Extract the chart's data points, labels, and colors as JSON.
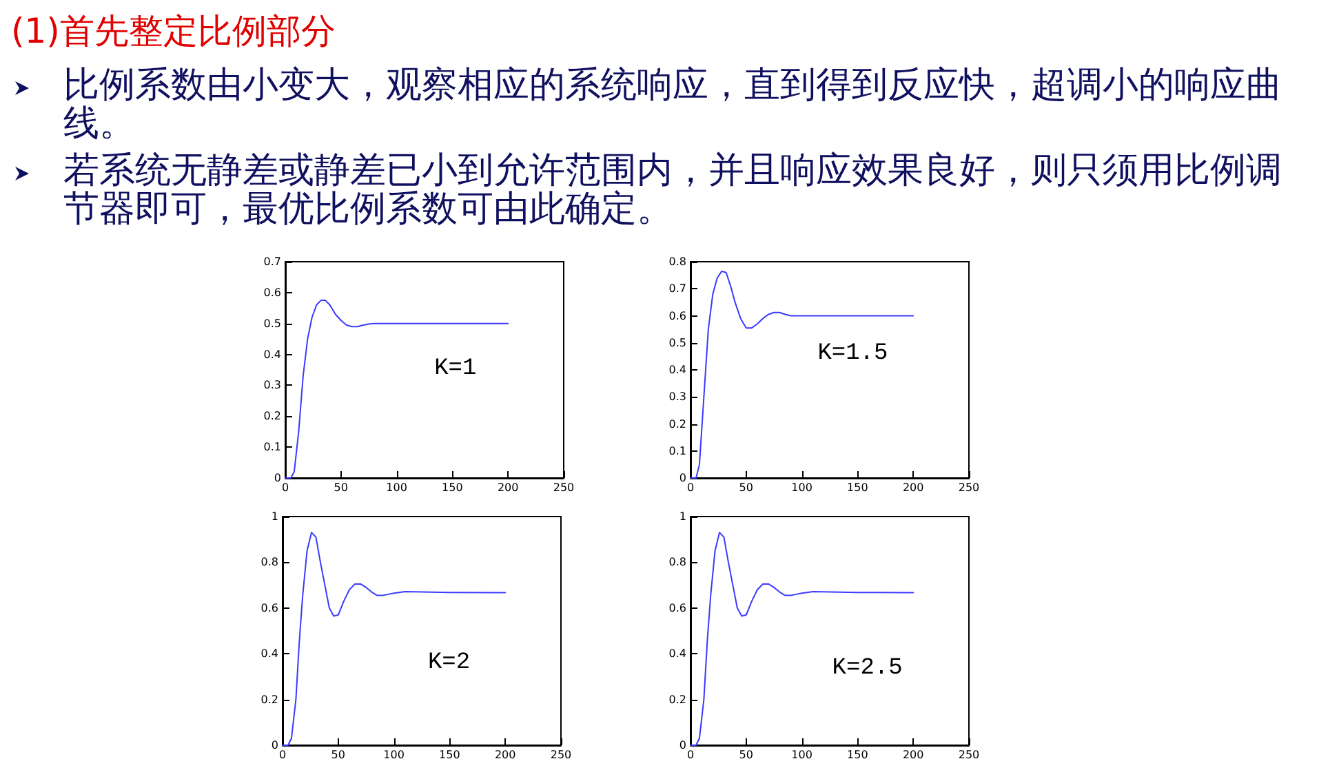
{
  "chart_data": [
    {
      "type": "other",
      "title": "(1)首先整定比例部分",
      "annotations": [
        "比例系数由小变大，观察相应的系统响应，直到得到反应快，超调小的响应曲线。",
        "若系统无静差或静差已小到允许范围内，并且响应效果良好，则只须用比例调节器即可，最优比例系数可由此确定。"
      ]
    },
    {
      "type": "line",
      "annotations": [
        "K=1"
      ],
      "xlim": [
        0,
        250
      ],
      "xticks": [
        0,
        50,
        100,
        150,
        200,
        250
      ],
      "ylim": [
        0,
        0.7
      ],
      "yticks": [
        0,
        0.1,
        0.2,
        0.3,
        0.4,
        0.5,
        0.6,
        0.7
      ],
      "grid": false,
      "marker": "none",
      "line_style": "solid",
      "series": [
        {
          "color": "#3a3aff",
          "x": [
            0,
            5,
            8,
            12,
            16,
            20,
            24,
            28,
            32,
            36,
            40,
            45,
            50,
            55,
            60,
            65,
            70,
            75,
            80,
            90,
            100,
            150,
            200
          ],
          "values": [
            0,
            0,
            0.02,
            0.15,
            0.33,
            0.45,
            0.52,
            0.56,
            0.575,
            0.575,
            0.56,
            0.53,
            0.51,
            0.495,
            0.49,
            0.49,
            0.495,
            0.498,
            0.5,
            0.5,
            0.5,
            0.5,
            0.5
          ]
        }
      ]
    },
    {
      "type": "line",
      "annotations": [
        "K=1.5"
      ],
      "xlim": [
        0,
        250
      ],
      "xticks": [
        0,
        50,
        100,
        150,
        200,
        250
      ],
      "ylim": [
        0,
        0.8
      ],
      "yticks": [
        0,
        0.1,
        0.2,
        0.3,
        0.4,
        0.5,
        0.6,
        0.7,
        0.8
      ],
      "grid": false,
      "marker": "none",
      "line_style": "solid",
      "series": [
        {
          "color": "#3a3aff",
          "x": [
            0,
            5,
            8,
            12,
            16,
            20,
            24,
            28,
            32,
            36,
            40,
            45,
            50,
            55,
            60,
            65,
            70,
            75,
            80,
            85,
            90,
            100,
            150,
            200
          ],
          "values": [
            0,
            0,
            0.05,
            0.3,
            0.55,
            0.68,
            0.74,
            0.765,
            0.76,
            0.71,
            0.65,
            0.59,
            0.555,
            0.555,
            0.57,
            0.59,
            0.605,
            0.612,
            0.612,
            0.605,
            0.6,
            0.6,
            0.6,
            0.6
          ]
        }
      ]
    },
    {
      "type": "line",
      "annotations": [
        "K=2"
      ],
      "xlim": [
        0,
        250
      ],
      "xticks": [
        0,
        50,
        100,
        150,
        200,
        250
      ],
      "ylim": [
        0,
        1
      ],
      "yticks": [
        0,
        0.2,
        0.4,
        0.6,
        0.8,
        1
      ],
      "grid": false,
      "marker": "none",
      "line_style": "solid",
      "series": [
        {
          "color": "#3a3aff",
          "x": [
            0,
            5,
            8,
            12,
            15,
            18,
            22,
            26,
            30,
            34,
            38,
            42,
            46,
            50,
            55,
            60,
            65,
            70,
            75,
            80,
            85,
            90,
            95,
            100,
            110,
            150,
            200
          ],
          "values": [
            0,
            0,
            0.03,
            0.2,
            0.45,
            0.65,
            0.85,
            0.93,
            0.91,
            0.8,
            0.7,
            0.6,
            0.565,
            0.57,
            0.63,
            0.68,
            0.705,
            0.705,
            0.69,
            0.67,
            0.655,
            0.655,
            0.66,
            0.665,
            0.672,
            0.668,
            0.667
          ]
        }
      ]
    },
    {
      "type": "line",
      "annotations": [
        "K=2.5"
      ],
      "xlim": [
        0,
        250
      ],
      "xticks": [
        0,
        50,
        100,
        150,
        200,
        250
      ],
      "ylim": [
        0,
        1
      ],
      "yticks": [
        0,
        0.2,
        0.4,
        0.6,
        0.8,
        1
      ],
      "grid": false,
      "marker": "none",
      "line_style": "solid",
      "series": [
        {
          "color": "#3a3aff",
          "x": [
            0,
            5,
            8,
            12,
            15,
            18,
            22,
            26,
            30,
            34,
            38,
            42,
            46,
            50,
            55,
            60,
            65,
            70,
            75,
            80,
            85,
            90,
            95,
            100,
            110,
            150,
            200
          ],
          "values": [
            0,
            0,
            0.03,
            0.2,
            0.45,
            0.65,
            0.85,
            0.93,
            0.91,
            0.8,
            0.7,
            0.6,
            0.565,
            0.57,
            0.63,
            0.68,
            0.705,
            0.705,
            0.69,
            0.67,
            0.655,
            0.655,
            0.66,
            0.665,
            0.672,
            0.668,
            0.667
          ]
        }
      ]
    }
  ]
}
